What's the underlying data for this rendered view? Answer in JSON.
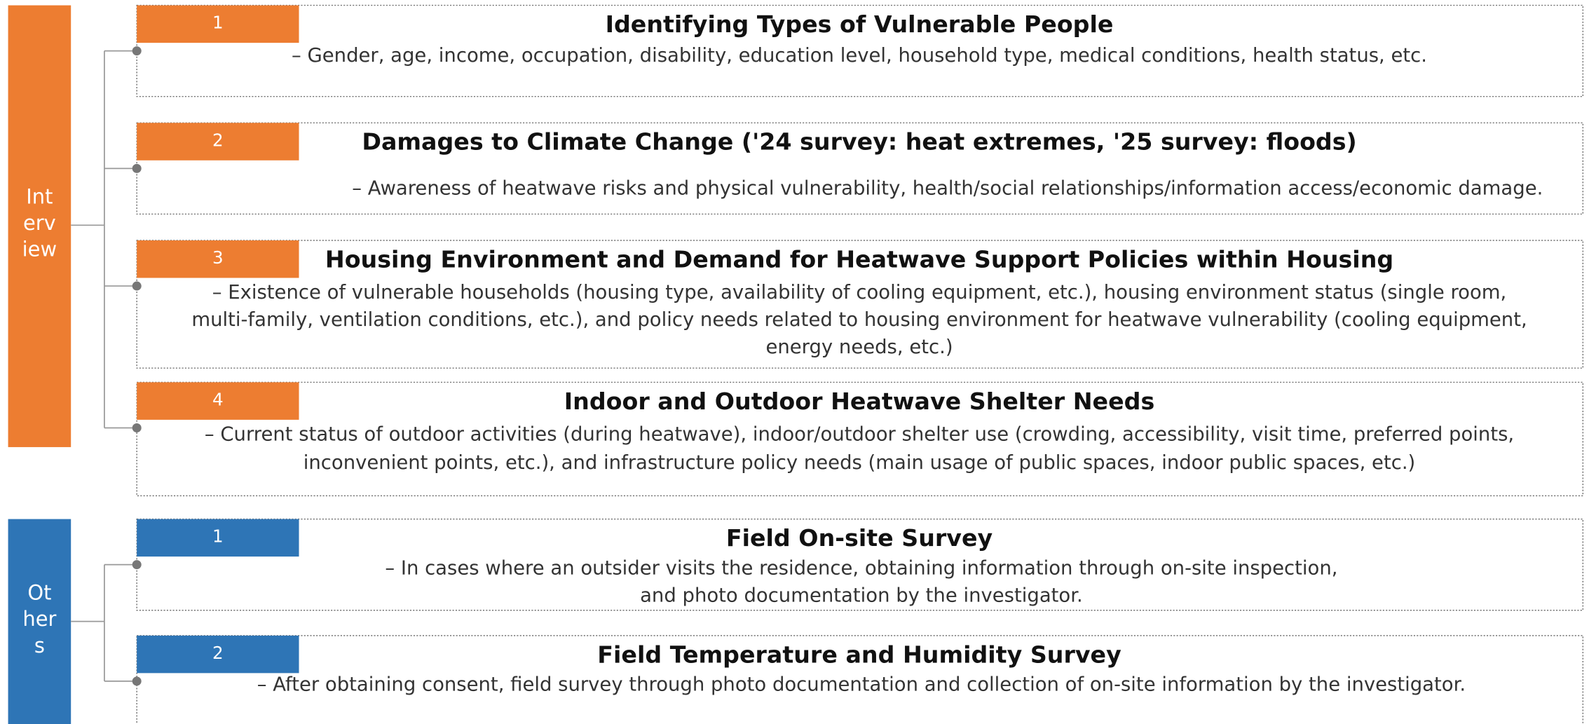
{
  "groups": [
    {
      "label_lines": [
        "Int",
        "erv",
        "iew"
      ],
      "items": [
        {
          "number": "1",
          "title": "Identifying Types of Vulnerable People",
          "description": [
            "– Gender, age, income, occupation, disability, education level, household type, medical conditions, health status, etc."
          ]
        },
        {
          "number": "2",
          "title": "Damages to Climate Change ('24 survey: heat extremes, '25 survey: floods)",
          "description": [
            "–  Awareness of heatwave risks and physical vulnerability, health/social relationships/information access/economic damage."
          ]
        },
        {
          "number": "3",
          "title": "Housing Environment and Demand for Heatwave Support Policies within Housing",
          "description": [
            "– Existence of vulnerable households (housing type, availability of cooling equipment, etc.), housing environment status (single room,",
            "multi-family, ventilation conditions, etc.), and policy needs related to housing environment for heatwave vulnerability (cooling equipment,",
            "energy needs, etc.)"
          ]
        },
        {
          "number": "4",
          "title": "Indoor and Outdoor Heatwave Shelter Needs",
          "description": [
            "– Current status of outdoor activities (during heatwave), indoor/outdoor shelter use (crowding, accessibility, visit time, preferred points,",
            "inconvenient points, etc.), and infrastructure policy needs (main usage of public spaces, indoor public spaces, etc.)"
          ]
        }
      ]
    },
    {
      "label_lines": [
        "Ot",
        "her",
        "s"
      ],
      "items": [
        {
          "number": "1",
          "title": "Field On-site Survey",
          "description": [
            "–  In cases where an outsider visits the residence, obtaining information through on-site inspection,",
            "and photo documentation by the investigator."
          ]
        },
        {
          "number": "2",
          "title": "Field Temperature and Humidity Survey",
          "description": [
            "– After obtaining consent, field survey through photo documentation and collection of on-site information by the investigator."
          ]
        }
      ]
    }
  ]
}
